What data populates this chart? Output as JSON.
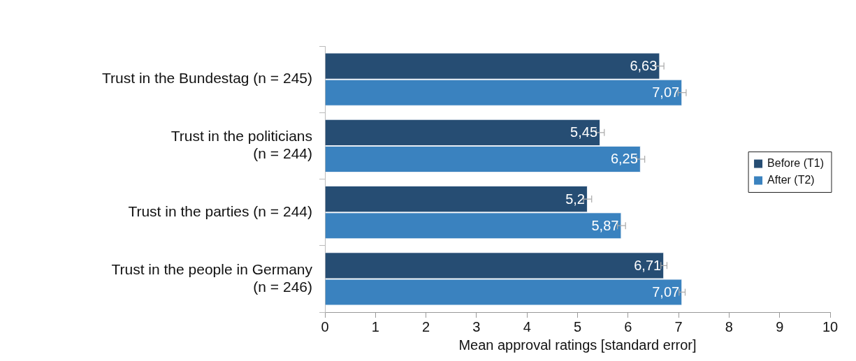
{
  "chart_data": {
    "type": "bar",
    "orientation": "horizontal",
    "xlabel": "Mean approval ratings [standard error]",
    "categories": [
      "Trust in the Bundestag (n = 245)",
      "Trust in the politicians (n = 244)",
      "Trust in the parties (n = 244)",
      "Trust in the people in Germany (n = 246)"
    ],
    "series": [
      {
        "name": "Before (T1)",
        "color": "#264d73",
        "values": [
          6.63,
          5.45,
          5.2,
          6.71
        ],
        "errors": [
          0.08,
          0.08,
          0.08,
          0.06
        ],
        "value_labels": [
          "6,63",
          "5,45",
          "5,2",
          "6,71"
        ]
      },
      {
        "name": "After (T2)",
        "color": "#3a82bf",
        "values": [
          7.07,
          6.25,
          5.87,
          7.07
        ],
        "errors": [
          0.08,
          0.08,
          0.08,
          0.06
        ],
        "value_labels": [
          "7,07",
          "6,25",
          "5,87",
          "7,07"
        ]
      }
    ],
    "xlim": [
      0,
      10
    ],
    "xticks": [
      0,
      1,
      2,
      3,
      4,
      5,
      6,
      7,
      8,
      9,
      10
    ],
    "grid": false,
    "legend": "right"
  }
}
